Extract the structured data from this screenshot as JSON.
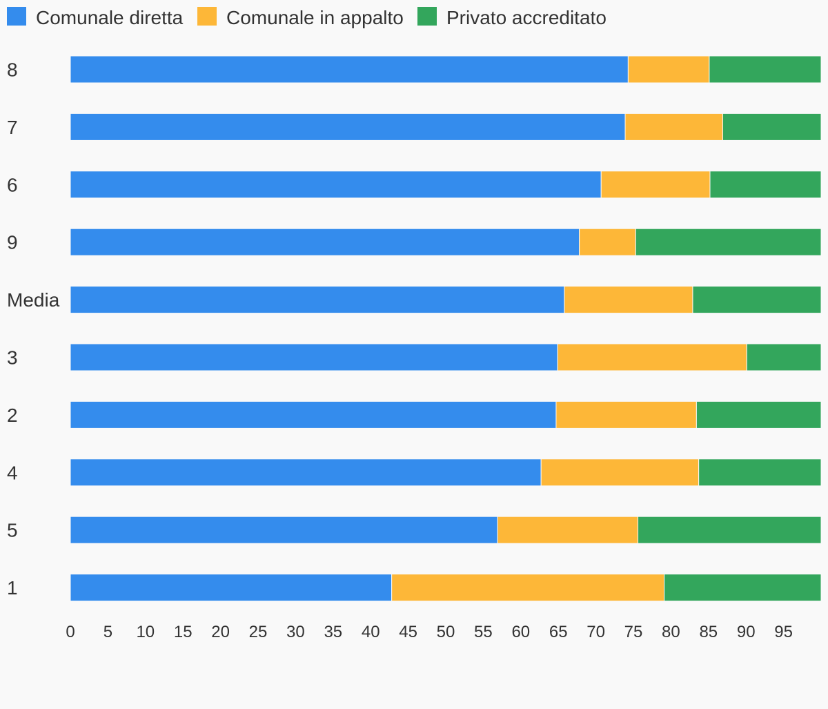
{
  "chart_data": {
    "type": "bar",
    "orientation": "horizontal",
    "stacked": true,
    "categories": [
      "8",
      "7",
      "6",
      "9",
      "Media",
      "3",
      "2",
      "4",
      "5",
      "1"
    ],
    "series": [
      {
        "name": "Comunale diretta",
        "color": "#348ced",
        "values": [
          74.3,
          73.9,
          70.7,
          67.8,
          65.8,
          64.9,
          64.7,
          62.7,
          56.9,
          42.8
        ]
      },
      {
        "name": "Comunale in appalto",
        "color": "#fdb738",
        "values": [
          10.8,
          13.0,
          14.5,
          7.5,
          17.1,
          25.2,
          18.7,
          21.0,
          18.7,
          36.3
        ]
      },
      {
        "name": "Privato accreditato",
        "color": "#33a65c",
        "values": [
          14.9,
          13.1,
          14.8,
          24.7,
          17.1,
          9.9,
          16.6,
          16.3,
          24.4,
          20.9
        ]
      }
    ],
    "xticks": [
      0,
      5,
      10,
      15,
      20,
      25,
      30,
      35,
      40,
      45,
      50,
      55,
      60,
      65,
      70,
      75,
      80,
      85,
      90,
      95
    ],
    "xlim": [
      0,
      100
    ],
    "title": "",
    "xlabel": "",
    "ylabel": "",
    "legend_position": "top-left",
    "grid": false
  }
}
